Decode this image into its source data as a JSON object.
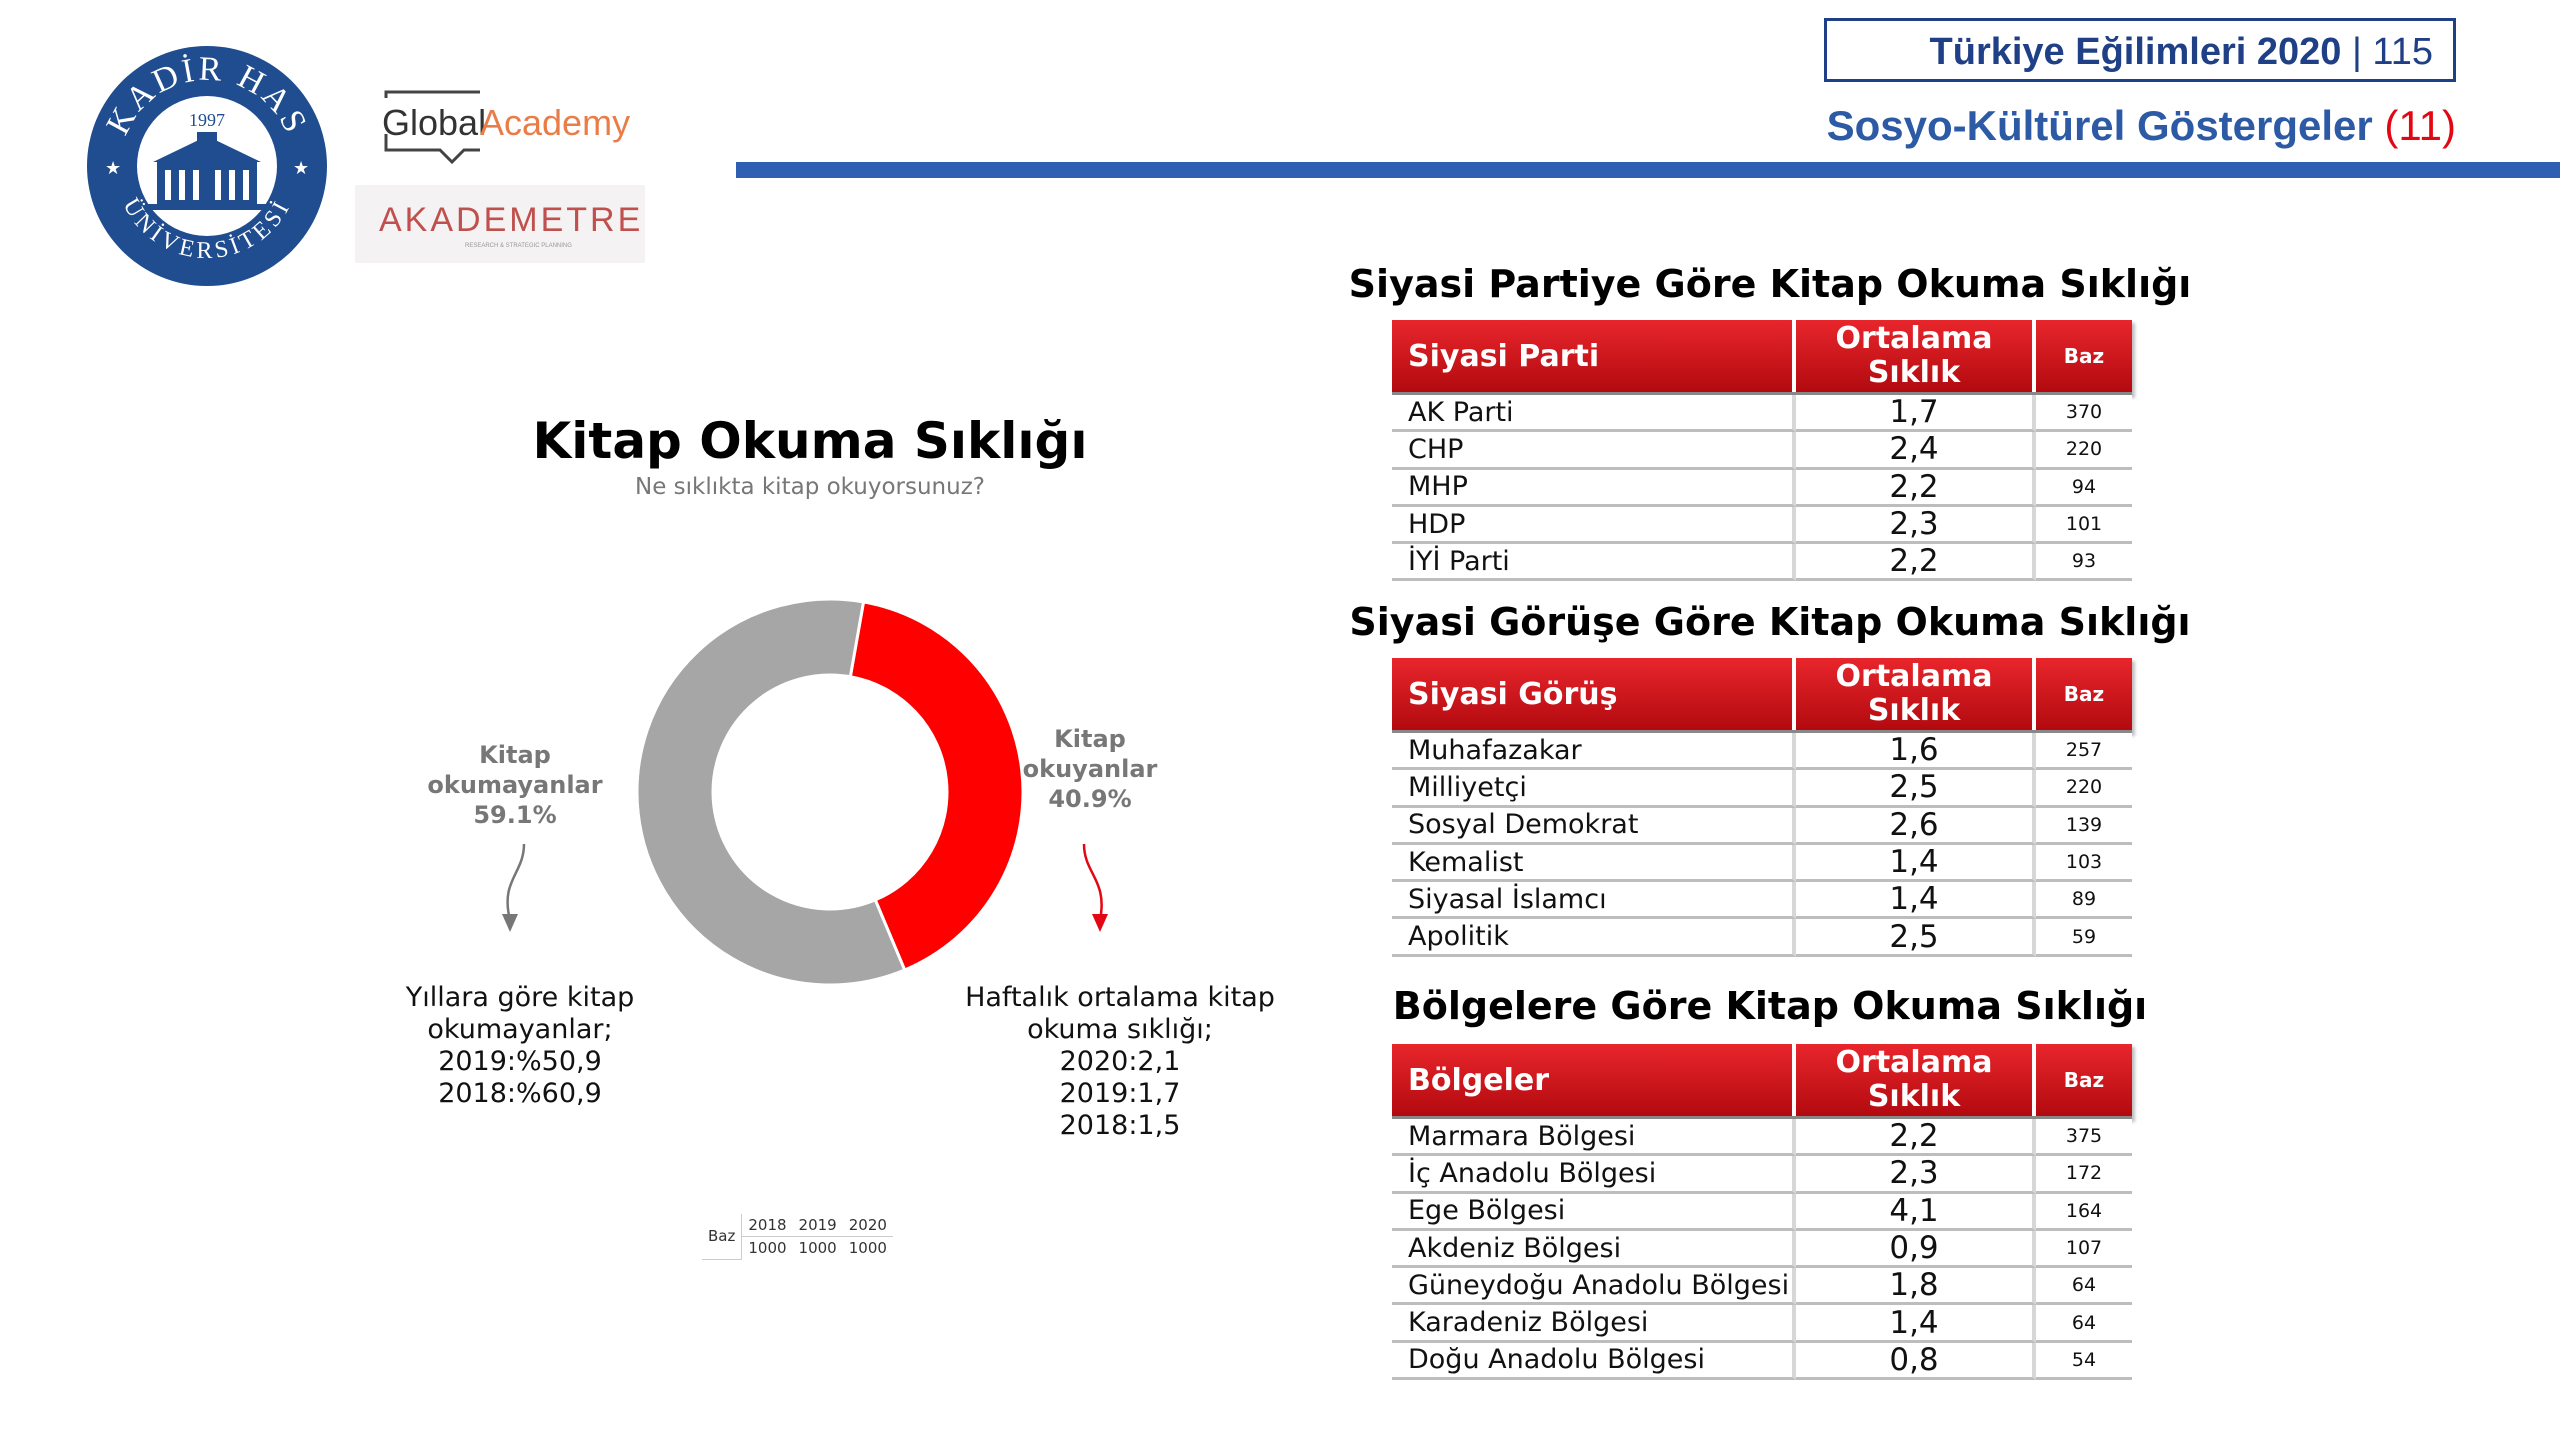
{
  "header": {
    "report_name": "Türkiye Eğilimleri 2020",
    "separator": " | ",
    "page_number": "115",
    "section_title": "Sosyo-Kültürel Göstergeler",
    "section_number": "(11)"
  },
  "logos": {
    "khas": {
      "top": "KADİR HAS",
      "bottom": "ÜNİVERSİTESİ",
      "year": "1997"
    },
    "global_academy": {
      "word1": "Global",
      "word2": "Academy"
    },
    "akademetre": {
      "text": "AKADEMETRE",
      "tagline": "RESEARCH & STRATEGIC PLANNING"
    }
  },
  "donut": {
    "title": "Kitap Okuma Sıklığı",
    "subtitle": "Ne sıklıkta kitap okuyorsunuz?",
    "label_non_readers_1": "Kitap",
    "label_non_readers_2": "okumayanlar",
    "label_non_readers_pct": "59.1%",
    "label_readers_1": "Kitap",
    "label_readers_2": "okuyanlar",
    "label_readers_pct": "40.9%",
    "note_left": [
      "Yıllara göre kitap",
      "okumayanlar;",
      "2019:%50,9",
      "2018:%60,9"
    ],
    "note_right": [
      "Haftalık ortalama kitap",
      "okuma sıklığı;",
      "2020:2,1",
      "2019:1,7",
      "2018:1,5"
    ],
    "baz": {
      "label": "Baz",
      "years": [
        "2018",
        "2019",
        "2020"
      ],
      "values": [
        "1000",
        "1000",
        "1000"
      ]
    }
  },
  "chart_data": [
    {
      "type": "pie",
      "title": "Kitap Okuma Sıklığı",
      "subtitle": "Ne sıklıkta kitap okuyorsunuz?",
      "categories": [
        "Kitap okuyanlar",
        "Kitap okumayanlar"
      ],
      "values": [
        40.9,
        59.1
      ],
      "colors": [
        "#ff0000",
        "#a6a6a6"
      ]
    },
    {
      "type": "table",
      "title": "Siyasi Partiye Göre Kitap Okuma Sıklığı",
      "columns": [
        "Siyasi Parti",
        "Ortalama Sıklık",
        "Baz"
      ],
      "rows": [
        [
          "AK Parti",
          "1,7",
          "370"
        ],
        [
          "CHP",
          "2,4",
          "220"
        ],
        [
          "MHP",
          "2,2",
          "94"
        ],
        [
          "HDP",
          "2,3",
          "101"
        ],
        [
          "İYİ Parti",
          "2,2",
          "93"
        ]
      ]
    },
    {
      "type": "table",
      "title": "Siyasi Görüşe Göre Kitap Okuma Sıklığı",
      "columns": [
        "Siyasi Görüş",
        "Ortalama Sıklık",
        "Baz"
      ],
      "rows": [
        [
          "Muhafazakar",
          "1,6",
          "257"
        ],
        [
          "Milliyetçi",
          "2,5",
          "220"
        ],
        [
          "Sosyal Demokrat",
          "2,6",
          "139"
        ],
        [
          "Kemalist",
          "1,4",
          "103"
        ],
        [
          "Siyasal İslamcı",
          "1,4",
          "89"
        ],
        [
          "Apolitik",
          "2,5",
          "59"
        ]
      ]
    },
    {
      "type": "table",
      "title": "Bölgelere Göre Kitap Okuma Sıklığı",
      "columns": [
        "Bölgeler",
        "Ortalama Sıklık",
        "Baz"
      ],
      "rows": [
        [
          "Marmara Bölgesi",
          "2,2",
          "375"
        ],
        [
          "İç Anadolu Bölgesi",
          "2,3",
          "172"
        ],
        [
          "Ege Bölgesi",
          "4,1",
          "164"
        ],
        [
          "Akdeniz Bölgesi",
          "0,9",
          "107"
        ],
        [
          "Güneydoğu Anadolu Bölgesi",
          "1,8",
          "64"
        ],
        [
          "Karadeniz Bölgesi",
          "1,4",
          "64"
        ],
        [
          "Doğu Anadolu Bölgesi",
          "0,8",
          "54"
        ]
      ]
    }
  ]
}
